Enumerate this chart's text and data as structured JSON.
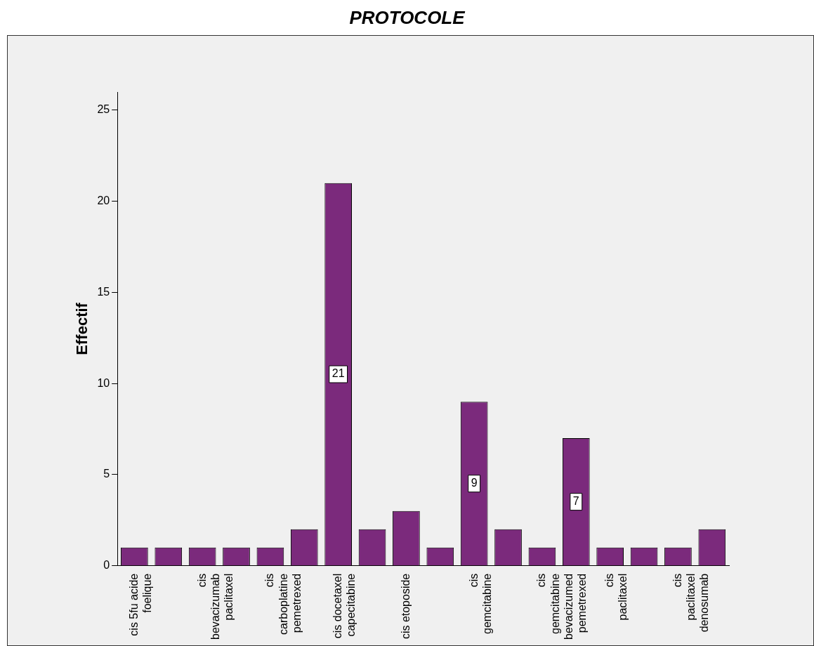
{
  "chart_data": {
    "type": "bar",
    "title": "PROTOCOLE",
    "ylabel": "Effectif",
    "categories": [
      "cis 5fu acide foelique",
      null,
      "cis bevacizumab paclitaxel",
      null,
      "cis carboplatine pemetrexed",
      null,
      "cis docetaxel capecitabine",
      null,
      "cis etoposide",
      null,
      "cis gemcitabine",
      null,
      "cis gemcitabine bevacizumed pemetrexed",
      null,
      "cis paclitaxel",
      null,
      "cis paclitaxel denosumab",
      null
    ],
    "values": [
      1,
      1,
      1,
      1,
      1,
      2,
      21,
      2,
      3,
      1,
      9,
      2,
      1,
      7,
      1,
      1,
      1,
      2
    ],
    "value_labels": [
      null,
      null,
      null,
      null,
      null,
      null,
      "21",
      null,
      null,
      null,
      "9",
      null,
      null,
      "7",
      null,
      null,
      null,
      null
    ],
    "color": "#7b2a7c",
    "ylim": [
      0,
      26
    ],
    "yticks": [
      0,
      5,
      10,
      15,
      20,
      25
    ],
    "grid": false,
    "legend": false
  }
}
